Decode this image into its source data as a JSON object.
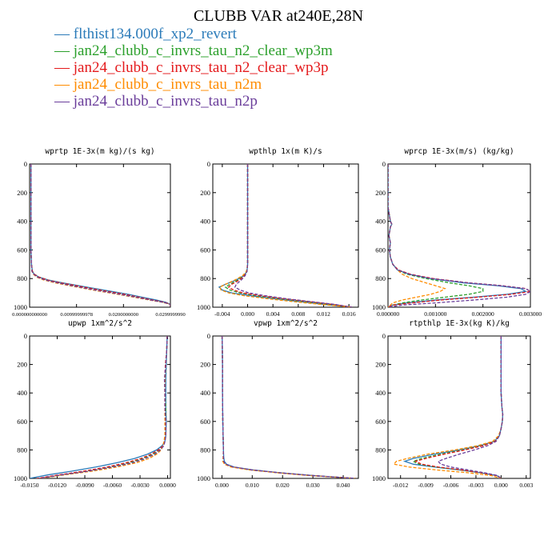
{
  "figure": {
    "title": "CLUBB VAR at240E,28N"
  },
  "legend": [
    {
      "name": "flthist134.000f_xp2_revert",
      "color": "#2b7bb9",
      "dash": "solid"
    },
    {
      "name": "jan24_clubb_c_invrs_tau_n2_clear_wp3m",
      "color": "#2ca02c",
      "dash": "dashed"
    },
    {
      "name": "jan24_clubb_c_invrs_tau_n2_clear_wp3p",
      "color": "#e41a1c",
      "dash": "dashed"
    },
    {
      "name": "jan24_clubb_c_invrs_tau_n2m",
      "color": "#ff8c00",
      "dash": "dashed"
    },
    {
      "name": "jan24_clubb_c_invrs_tau_n2p",
      "color": "#6a3d9a",
      "dash": "dashed"
    }
  ],
  "chart_data": [
    {
      "type": "line",
      "title": "wprtp  1E-3x(m kg)/(s kg)",
      "xlim": [
        0,
        0.03
      ],
      "ylim": [
        1000,
        0
      ],
      "xticks": [
        "0.000000000000",
        "0.00999999978",
        "0.0200000000",
        "0.0299999990"
      ],
      "xtick_values": [
        0,
        0.01,
        0.02,
        0.03
      ],
      "yticks": [
        0,
        200,
        400,
        600,
        800,
        1000
      ],
      "y": [
        0,
        200,
        400,
        600,
        700,
        750,
        770,
        790,
        810,
        830,
        850,
        870,
        890,
        910,
        930,
        950,
        965,
        980,
        995
      ],
      "series": [
        {
          "x": [
            0.0003,
            0.0003,
            0.0003,
            0.0003,
            0.0004,
            0.0006,
            0.001,
            0.002,
            0.004,
            0.007,
            0.0105,
            0.014,
            0.0175,
            0.021,
            0.024,
            0.027,
            0.029,
            0.03,
            0.03
          ]
        },
        {
          "x": [
            0.0003,
            0.0003,
            0.0003,
            0.0003,
            0.0004,
            0.0006,
            0.001,
            0.002,
            0.0038,
            0.0065,
            0.0098,
            0.013,
            0.0165,
            0.02,
            0.023,
            0.026,
            0.0285,
            0.03,
            0.03
          ]
        },
        {
          "x": [
            0.0003,
            0.0003,
            0.0003,
            0.0003,
            0.0004,
            0.0006,
            0.001,
            0.002,
            0.0038,
            0.0066,
            0.01,
            0.0132,
            0.0167,
            0.0202,
            0.0233,
            0.0262,
            0.0287,
            0.03,
            0.03
          ]
        },
        {
          "x": [
            0.0003,
            0.0003,
            0.0003,
            0.0003,
            0.0004,
            0.0005,
            0.0008,
            0.0015,
            0.003,
            0.0055,
            0.0085,
            0.0118,
            0.0152,
            0.0188,
            0.0222,
            0.0255,
            0.0282,
            0.03,
            0.03
          ]
        },
        {
          "x": [
            0.0003,
            0.0003,
            0.0003,
            0.0003,
            0.0004,
            0.0005,
            0.0009,
            0.0017,
            0.0033,
            0.006,
            0.009,
            0.0122,
            0.0157,
            0.0193,
            0.0226,
            0.0258,
            0.0284,
            0.03,
            0.03
          ]
        }
      ]
    },
    {
      "type": "line",
      "title": "wpthlp  1x(m K)/s",
      "xlim": [
        -0.0055,
        0.0175
      ],
      "ylim": [
        1000,
        0
      ],
      "xticks": [
        "-0.004",
        "0.000",
        "0.004",
        "0.008",
        "0.012",
        "0.016"
      ],
      "xtick_values": [
        -0.004,
        0,
        0.004,
        0.008,
        0.012,
        0.016
      ],
      "yticks": [
        0,
        200,
        400,
        600,
        800,
        1000
      ],
      "y": [
        0,
        200,
        400,
        600,
        700,
        750,
        780,
        810,
        840,
        860,
        880,
        900,
        920,
        940,
        960,
        980,
        1000
      ],
      "series": [
        {
          "x": [
            0,
            0,
            0,
            0,
            0,
            -0.0001,
            -0.0006,
            -0.0018,
            -0.0035,
            -0.0045,
            -0.004,
            -0.0025,
            0.0005,
            0.004,
            0.008,
            0.012,
            0.0165
          ]
        },
        {
          "x": [
            0,
            0,
            0,
            0,
            0,
            -0.0001,
            -0.0005,
            -0.0015,
            -0.0028,
            -0.0035,
            -0.0028,
            -0.0012,
            0.0015,
            0.005,
            0.009,
            0.013,
            0.0165
          ]
        },
        {
          "x": [
            0,
            0,
            0,
            0,
            0,
            -0.0001,
            -0.0005,
            -0.0013,
            -0.0025,
            -0.003,
            -0.0022,
            -0.0008,
            0.002,
            0.0055,
            0.0095,
            0.0135,
            0.0165
          ]
        },
        {
          "x": [
            0,
            0,
            0,
            0,
            0,
            -0.0002,
            -0.0008,
            -0.002,
            -0.0035,
            -0.0044,
            -0.0042,
            -0.003,
            -0.0005,
            0.003,
            0.007,
            0.0115,
            0.0165
          ]
        },
        {
          "x": [
            0,
            0,
            0,
            0,
            0,
            -0.0001,
            -0.0004,
            -0.001,
            -0.0018,
            -0.002,
            -0.0012,
            0.0002,
            0.0028,
            0.006,
            0.0098,
            0.0137,
            0.0165
          ]
        }
      ]
    },
    {
      "type": "line",
      "title": "wprcp  1E-3x(m/s) (kg/kg)",
      "xlim": [
        0,
        0.003
      ],
      "ylim": [
        1000,
        0
      ],
      "xticks": [
        "0.000000",
        "0.001000",
        "0.002000",
        "0.003000"
      ],
      "xtick_values": [
        0,
        0.001,
        0.002,
        0.003
      ],
      "yticks": [
        0,
        200,
        400,
        600,
        800,
        1000
      ],
      "y": [
        0,
        300,
        400,
        420,
        440,
        500,
        550,
        600,
        650,
        700,
        740,
        770,
        800,
        830,
        850,
        870,
        890,
        910,
        930,
        950,
        970,
        985,
        1000
      ],
      "series": [
        {
          "x": [
            0,
            0,
            5e-05,
            8e-05,
            5e-05,
            2e-05,
            5e-05,
            3e-05,
            5e-05,
            0.0001,
            0.0002,
            0.00045,
            0.0009,
            0.0016,
            0.0023,
            0.0028,
            0.0029,
            0.0025,
            0.0018,
            0.001,
            0.0004,
            0.0001,
            0
          ]
        },
        {
          "x": [
            0,
            0,
            5e-05,
            8e-05,
            5e-05,
            2e-05,
            5e-05,
            3e-05,
            5e-05,
            0.0001,
            0.0002,
            0.0004,
            0.0008,
            0.0013,
            0.0017,
            0.002,
            0.002,
            0.0017,
            0.0012,
            0.0007,
            0.0003,
            0.0001,
            0
          ]
        },
        {
          "x": [
            0,
            0,
            5e-05,
            8e-05,
            5e-05,
            2e-05,
            5e-05,
            3e-05,
            5e-05,
            0.0001,
            0.00022,
            0.00048,
            0.00095,
            0.0017,
            0.0024,
            0.0029,
            0.003,
            0.0026,
            0.0019,
            0.0011,
            0.0005,
            0.0001,
            0
          ]
        },
        {
          "x": [
            0,
            0,
            5e-05,
            8e-05,
            5e-05,
            2e-05,
            5e-05,
            3e-05,
            5e-05,
            0.0001,
            0.0002,
            0.0003,
            0.0005,
            0.0008,
            0.001,
            0.0012,
            0.0011,
            0.0009,
            0.0006,
            0.0003,
            0.0001,
            5e-05,
            0
          ]
        },
        {
          "x": [
            0,
            0,
            5e-05,
            8e-05,
            5e-05,
            2e-05,
            5e-05,
            3e-05,
            5e-05,
            0.0001,
            0.0002,
            0.00045,
            0.0009,
            0.0017,
            0.0024,
            0.0029,
            0.003,
            0.0029,
            0.0025,
            0.0018,
            0.001,
            0.0003,
            0
          ]
        }
      ]
    },
    {
      "type": "line",
      "title": "upwp  1xm^2/s^2",
      "xlim": [
        -0.015,
        0.0003
      ],
      "ylim": [
        1000,
        0
      ],
      "xticks": [
        "-0.0150",
        "-0.0120",
        "-0.0090",
        "-0.0060",
        "-0.0030",
        "0.0000"
      ],
      "xtick_values": [
        -0.015,
        -0.012,
        -0.009,
        -0.006,
        -0.003,
        0
      ],
      "yticks": [
        0,
        200,
        400,
        600,
        800,
        1000
      ],
      "y": [
        0,
        100,
        200,
        300,
        400,
        500,
        600,
        700,
        740,
        770,
        800,
        830,
        860,
        890,
        920,
        950,
        975,
        1000
      ],
      "series": [
        {
          "x": [
            -5e-05,
            -0.0001,
            -0.00015,
            -0.0002,
            -0.0002,
            -0.0002,
            -0.00015,
            -0.0002,
            -0.0003,
            -0.0006,
            -0.0012,
            -0.0022,
            -0.0036,
            -0.0055,
            -0.0078,
            -0.0105,
            -0.013,
            -0.015
          ]
        },
        {
          "x": [
            -5e-05,
            -0.0001,
            -0.0002,
            -0.0003,
            -0.0003,
            -0.0002,
            -0.0002,
            -0.0002,
            -0.0003,
            -0.0005,
            -0.0009,
            -0.0016,
            -0.0027,
            -0.0042,
            -0.0062,
            -0.0088,
            -0.0115,
            -0.014
          ]
        },
        {
          "x": [
            -5e-05,
            -0.0001,
            -0.00025,
            -0.0003,
            -0.0003,
            -0.0003,
            -0.0002,
            -0.0002,
            -0.0003,
            -0.0005,
            -0.001,
            -0.0018,
            -0.0029,
            -0.0045,
            -0.0066,
            -0.0092,
            -0.0118,
            -0.0142
          ]
        },
        {
          "x": [
            -5e-05,
            -0.0001,
            -0.0002,
            -0.0003,
            -0.0003,
            -0.0003,
            -0.0003,
            -0.0003,
            -0.0004,
            -0.0005,
            -0.0007,
            -0.0012,
            -0.002,
            -0.0034,
            -0.0055,
            -0.0083,
            -0.0112,
            -0.0138
          ]
        },
        {
          "x": [
            -5e-05,
            -0.0001,
            -0.0002,
            -0.00035,
            -0.0003,
            -0.0003,
            -0.0002,
            -0.0002,
            -0.0003,
            -0.0004,
            -0.0008,
            -0.0014,
            -0.0024,
            -0.0038,
            -0.006,
            -0.0087,
            -0.0115,
            -0.014
          ]
        }
      ]
    },
    {
      "type": "line",
      "title": "vpwp  1xm^2/s^2",
      "xlim": [
        -0.003,
        0.045
      ],
      "ylim": [
        1000,
        0
      ],
      "xticks": [
        "0.000",
        "0.010",
        "0.020",
        "0.030",
        "0.040"
      ],
      "xtick_values": [
        0,
        0.01,
        0.02,
        0.03,
        0.04
      ],
      "yticks": [
        0,
        200,
        400,
        600,
        800,
        1000
      ],
      "y": [
        0,
        200,
        400,
        600,
        700,
        800,
        850,
        880,
        900,
        920,
        940,
        960,
        980,
        1000
      ],
      "series": [
        {
          "x": [
            0.0001,
            0.0002,
            0.0002,
            0.0003,
            0.0004,
            0.0005,
            0.0006,
            0.0008,
            0.0015,
            0.004,
            0.01,
            0.019,
            0.03,
            0.044
          ]
        },
        {
          "x": [
            0.0001,
            0.0002,
            0.0002,
            0.0003,
            0.0004,
            0.0005,
            0.0005,
            0.0005,
            0.001,
            0.0035,
            0.0095,
            0.0185,
            0.0295,
            0.044
          ]
        },
        {
          "x": [
            0.0001,
            0.0002,
            0.0002,
            0.0003,
            0.0004,
            0.0005,
            0.0005,
            0.0005,
            0.001,
            0.0035,
            0.0095,
            0.0185,
            0.0295,
            0.044
          ]
        },
        {
          "x": [
            0.0001,
            0.0002,
            0.0002,
            0.0003,
            0.0004,
            0.0005,
            0.0004,
            0.0003,
            0.0008,
            0.003,
            0.009,
            0.018,
            0.029,
            0.044
          ]
        },
        {
          "x": [
            0.0001,
            0.0002,
            0.0002,
            0.0003,
            0.0004,
            0.0005,
            0.0005,
            0.0006,
            0.0012,
            0.0038,
            0.0098,
            0.0188,
            0.0298,
            0.044
          ]
        }
      ]
    },
    {
      "type": "line",
      "title": "rtpthlp  1E-3x(kg K)/kg",
      "xlim": [
        -0.0135,
        0.0035
      ],
      "ylim": [
        1000,
        0
      ],
      "xticks": [
        "-0.012",
        "-0.009",
        "-0.006",
        "-0.003",
        "0.000",
        "0.003"
      ],
      "xtick_values": [
        -0.012,
        -0.009,
        -0.006,
        -0.003,
        0,
        0.003
      ],
      "yticks": [
        0,
        200,
        400,
        600,
        800,
        1000
      ],
      "y": [
        0,
        200,
        400,
        500,
        550,
        600,
        650,
        700,
        740,
        770,
        800,
        830,
        860,
        880,
        900,
        920,
        940,
        960,
        980,
        1000
      ],
      "series": [
        {
          "x": [
            0,
            0,
            0,
            0.0001,
            0.0002,
            0.00015,
            0,
            -0.0002,
            -0.0008,
            -0.0025,
            -0.005,
            -0.008,
            -0.0105,
            -0.0115,
            -0.0105,
            -0.008,
            -0.005,
            -0.0025,
            -0.0005,
            0
          ]
        },
        {
          "x": [
            0,
            0,
            0,
            0.0001,
            0.0002,
            0.00015,
            0,
            -0.0002,
            -0.0007,
            -0.0022,
            -0.0045,
            -0.0072,
            -0.0095,
            -0.0105,
            -0.0098,
            -0.0078,
            -0.005,
            -0.0025,
            -0.0005,
            0
          ]
        },
        {
          "x": [
            0,
            0,
            0,
            0.0001,
            0.0002,
            0.00015,
            0,
            -0.0002,
            -0.0007,
            -0.0021,
            -0.0043,
            -0.0068,
            -0.009,
            -0.0102,
            -0.0095,
            -0.0075,
            -0.0048,
            -0.0024,
            -0.0005,
            0
          ]
        },
        {
          "x": [
            0,
            0,
            0,
            0.0001,
            0.0002,
            0.00015,
            0,
            -0.0003,
            -0.001,
            -0.0028,
            -0.0055,
            -0.0088,
            -0.0112,
            -0.0125,
            -0.0128,
            -0.011,
            -0.0078,
            -0.004,
            -0.0012,
            0
          ]
        },
        {
          "x": [
            0,
            0,
            0,
            0.0001,
            0.0002,
            0.00015,
            0,
            -0.0002,
            -0.0006,
            -0.0016,
            -0.0032,
            -0.005,
            -0.0066,
            -0.0075,
            -0.0072,
            -0.006,
            -0.004,
            -0.002,
            -0.0004,
            0
          ]
        }
      ]
    }
  ]
}
